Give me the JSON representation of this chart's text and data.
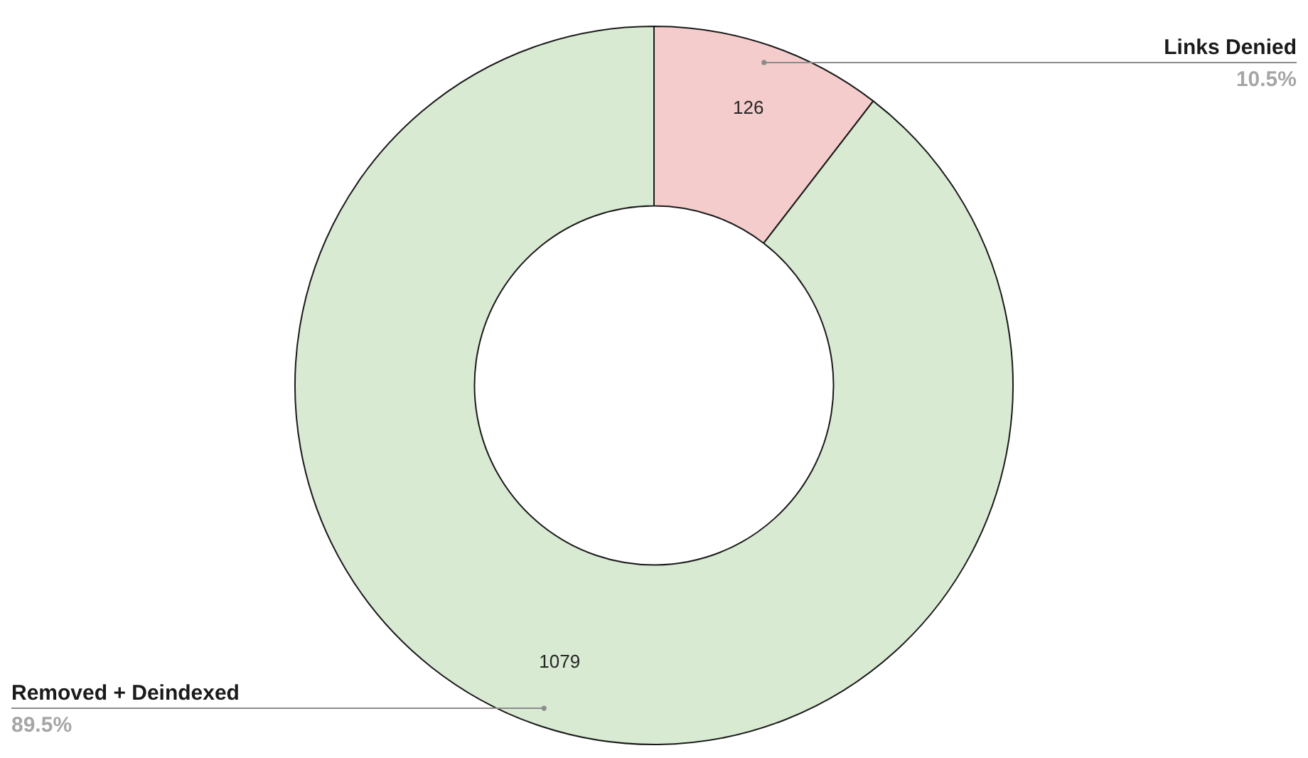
{
  "chart_data": {
    "type": "donut",
    "categories": [
      "Links Denied",
      "Removed + Deindexed"
    ],
    "values": [
      126,
      1079
    ],
    "colors": [
      "#f4cccc",
      "#d9ead3"
    ],
    "data_labels": true,
    "annotations": [
      "10.5%",
      "89.5%"
    ],
    "legend": false
  }
}
